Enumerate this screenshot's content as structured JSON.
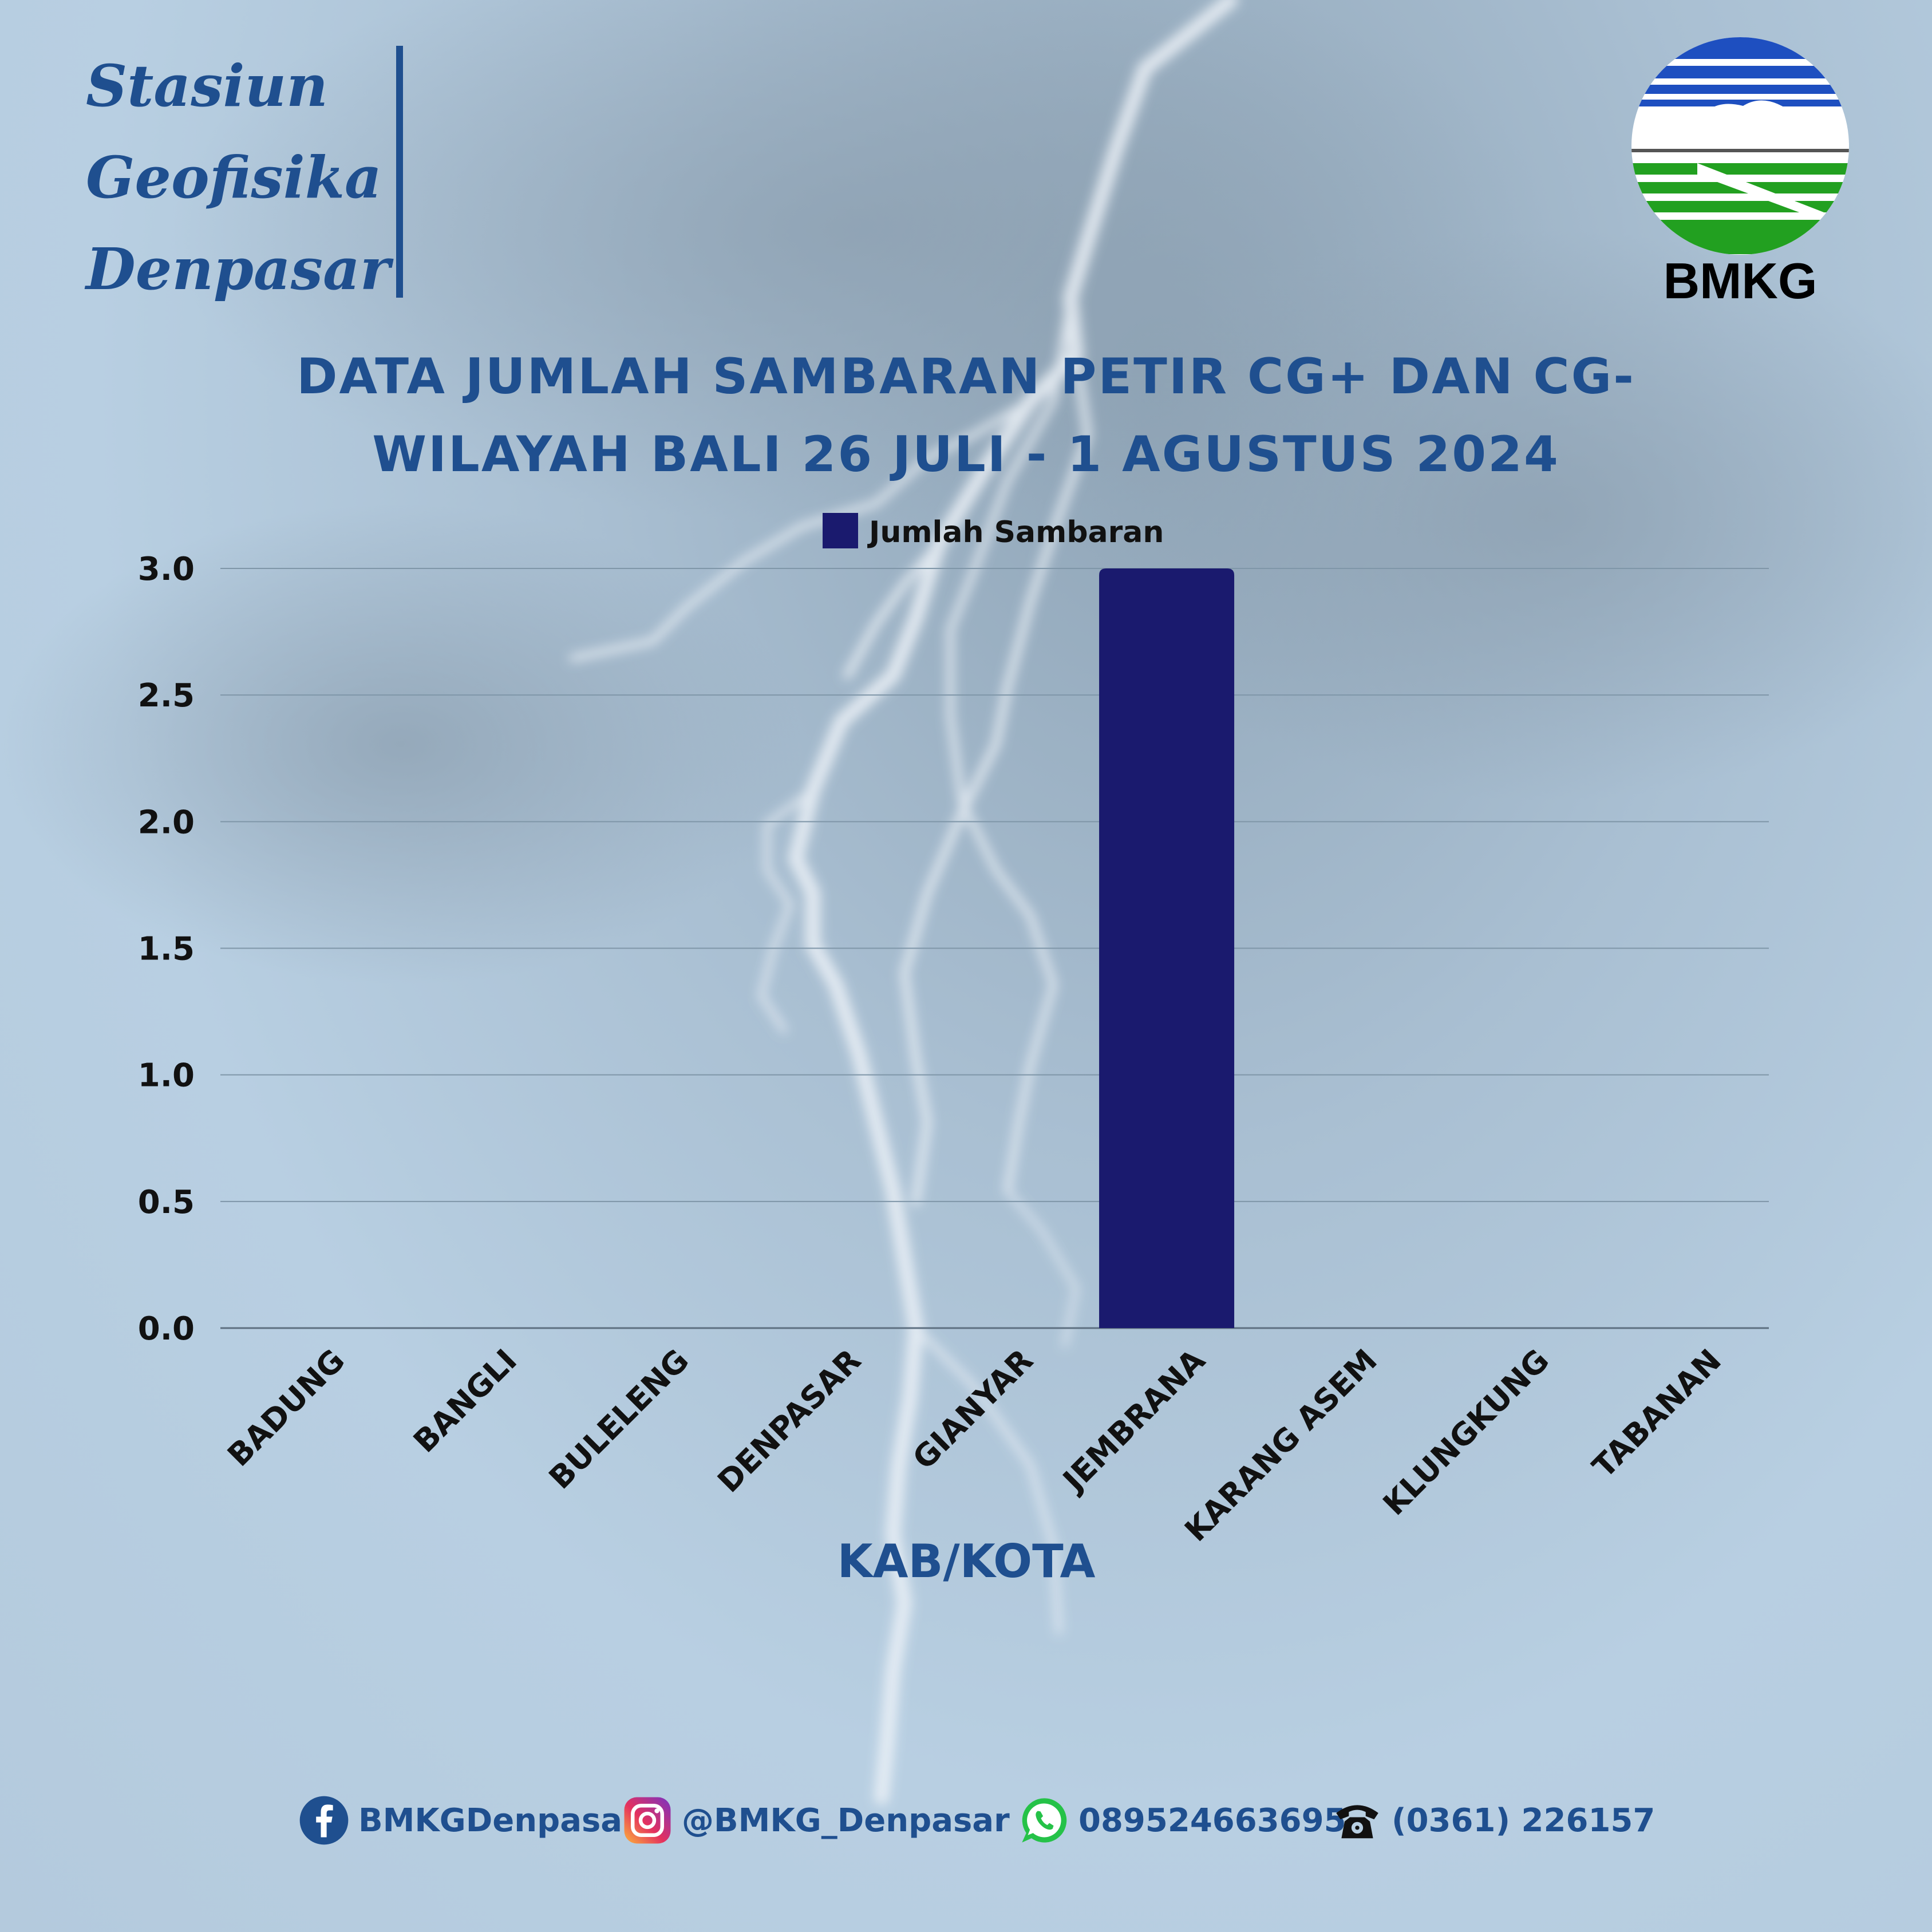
{
  "header": {
    "station_lines": [
      "Stasiun",
      "Geofisika",
      "Denpasar"
    ],
    "logo_text": "BMKG",
    "title_line1": "DATA JUMLAH SAMBARAN PETIR CG+ DAN CG-",
    "title_line2": "WILAYAH BALI  26 JULI - 1 AGUSTUS 2024"
  },
  "colors": {
    "bar": "#1a1a6e",
    "title": "#1f4f8f",
    "axis_text": "#111111",
    "grid": "#7f96a8"
  },
  "chart_data": {
    "type": "bar",
    "categories": [
      "BADUNG",
      "BANGLI",
      "BULELENG",
      "DENPASAR",
      "GIANYAR",
      "JEMBRANA",
      "KARANG ASEM",
      "KLUNGKUNG",
      "TABANAN"
    ],
    "series": [
      {
        "name": "Jumlah Sambaran",
        "values": [
          0,
          0,
          0,
          0,
          0,
          3,
          0,
          0,
          0
        ]
      }
    ],
    "title": "DATA JUMLAH SAMBARAN PETIR CG+ DAN CG- WILAYAH BALI  26 JULI - 1 AGUSTUS 2024",
    "xlabel": "KAB/KOTA",
    "ylabel": "",
    "ylim": [
      0,
      3
    ],
    "yticks": [
      "0.0",
      "0.5",
      "1.0",
      "1.5",
      "2.0",
      "2.5",
      "3.0"
    ],
    "grid": true,
    "legend": "top-center"
  },
  "footer": [
    {
      "icon": "facebook-icon",
      "text": "BMKGDenpasar"
    },
    {
      "icon": "instagram-icon",
      "text": "@BMKG_Denpasar"
    },
    {
      "icon": "whatsapp-icon",
      "text": "089524663695"
    },
    {
      "icon": "telephone-icon",
      "text": "(0361) 226157"
    }
  ]
}
